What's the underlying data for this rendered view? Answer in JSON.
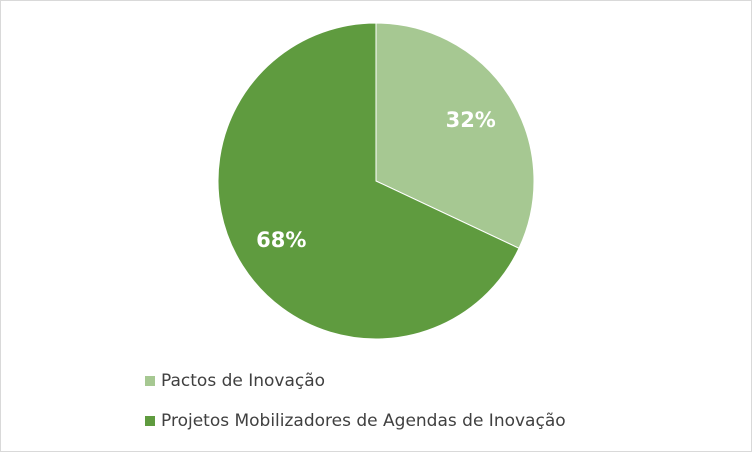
{
  "chart_data": {
    "type": "pie",
    "categories": [
      "Pactos de Inovação",
      "Projetos Mobilizadores de Agendas de Inovação"
    ],
    "values": [
      32,
      68
    ],
    "value_labels": [
      "32%",
      "68%"
    ],
    "colors": [
      "#a6c892",
      "#5f9b3f"
    ]
  }
}
